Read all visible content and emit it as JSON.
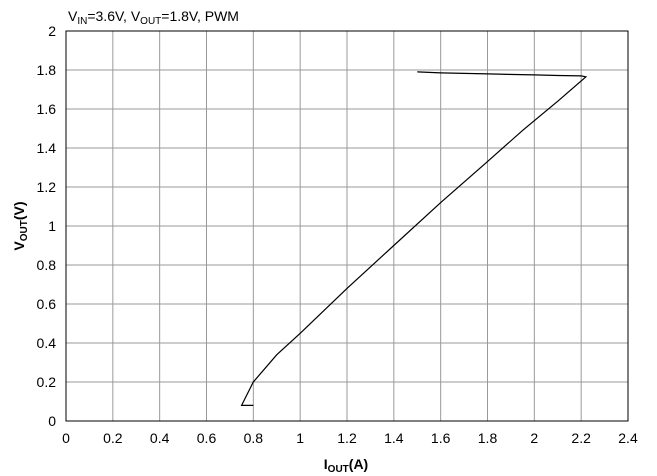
{
  "chart_data": {
    "type": "line",
    "title_parts": {
      "v1": "V",
      "v1_sub": "IN",
      "v1_rest": "=3.6V, ",
      "v2": "V",
      "v2_sub": "OUT",
      "v2_rest": "=1.8V, PWM"
    },
    "xlabel": {
      "main": "I",
      "sub": "OUT",
      "rest": "(A)"
    },
    "ylabel": {
      "main": "V",
      "sub": "OUT",
      "rest": "(V)"
    },
    "xlim": [
      0,
      2.4
    ],
    "ylim": [
      0,
      2
    ],
    "xticks": [
      0,
      0.2,
      0.4,
      0.6,
      0.8,
      1,
      1.2,
      1.4,
      1.6,
      1.8,
      2,
      2.2,
      2.4
    ],
    "yticks": [
      0,
      0.2,
      0.4,
      0.6,
      0.8,
      1,
      1.2,
      1.4,
      1.6,
      1.8,
      2
    ],
    "grid": true,
    "series": [
      {
        "color": "#000000",
        "x": [
          1.5,
          1.6,
          1.8,
          2.0,
          2.1,
          2.2,
          2.22,
          2.1,
          1.95,
          1.8,
          1.6,
          1.4,
          1.2,
          1.0,
          0.9,
          0.8,
          0.75,
          0.8
        ],
        "y": [
          1.79,
          1.785,
          1.78,
          1.775,
          1.772,
          1.77,
          1.765,
          1.64,
          1.49,
          1.33,
          1.12,
          0.9,
          0.68,
          0.45,
          0.34,
          0.2,
          0.08,
          0.08
        ]
      }
    ]
  }
}
